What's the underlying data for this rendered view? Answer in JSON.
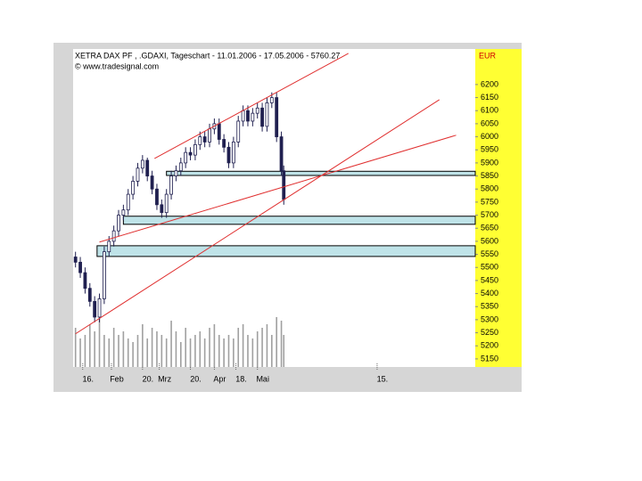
{
  "chart_data": {
    "type": "candlestick",
    "title": "XETRA DAX PF    , .GDAXI, Tageschart - 11.01.2006 - 17.05.2006 - 5760.27",
    "subtitle": "© www.tradesignal.com",
    "currency": "EUR",
    "x": [
      0,
      2,
      4,
      6,
      8,
      10,
      12,
      14,
      16,
      18,
      20,
      22,
      24,
      26,
      28,
      30,
      32,
      34,
      36,
      38,
      40,
      42,
      44,
      46,
      48,
      50,
      52,
      54,
      56,
      58,
      60,
      62,
      64,
      66,
      68,
      70,
      72,
      74,
      76,
      78,
      80,
      82,
      84,
      86,
      87
    ],
    "open": [
      5540,
      5520,
      5480,
      5420,
      5370,
      5310,
      5380,
      5560,
      5600,
      5640,
      5700,
      5720,
      5780,
      5830,
      5880,
      5910,
      5850,
      5800,
      5740,
      5710,
      5780,
      5850,
      5870,
      5900,
      5940,
      5930,
      5970,
      6000,
      5980,
      6030,
      6050,
      5990,
      5960,
      5900,
      5980,
      6060,
      6100,
      6060,
      6090,
      6110,
      6040,
      6130,
      6150,
      6000,
      5870
    ],
    "high": [
      5560,
      5540,
      5500,
      5440,
      5390,
      5400,
      5580,
      5620,
      5660,
      5720,
      5740,
      5800,
      5850,
      5900,
      5930,
      5920,
      5870,
      5820,
      5760,
      5800,
      5870,
      5890,
      5920,
      5960,
      5960,
      5990,
      6020,
      6020,
      6050,
      6070,
      6070,
      6010,
      5980,
      6000,
      6080,
      6120,
      6120,
      6110,
      6130,
      6130,
      6150,
      6170,
      6170,
      6020,
      5890
    ],
    "low": [
      5500,
      5460,
      5400,
      5350,
      5290,
      5290,
      5360,
      5540,
      5580,
      5620,
      5680,
      5700,
      5760,
      5810,
      5860,
      5830,
      5780,
      5720,
      5690,
      5690,
      5760,
      5830,
      5850,
      5880,
      5910,
      5910,
      5950,
      5960,
      5960,
      6010,
      5970,
      5940,
      5880,
      5880,
      5960,
      6040,
      6040,
      6040,
      6070,
      6020,
      6020,
      6110,
      5980,
      5850,
      5740
    ],
    "close": [
      5520,
      5480,
      5420,
      5370,
      5310,
      5380,
      5560,
      5600,
      5640,
      5700,
      5720,
      5780,
      5830,
      5880,
      5910,
      5850,
      5800,
      5740,
      5710,
      5780,
      5850,
      5870,
      5900,
      5940,
      5930,
      5970,
      6000,
      5980,
      6030,
      6050,
      5990,
      5960,
      5900,
      5980,
      6060,
      6100,
      6060,
      6090,
      6110,
      6040,
      6130,
      6150,
      6000,
      5870,
      5760
    ],
    "volume": [
      55,
      40,
      45,
      60,
      50,
      70,
      45,
      40,
      55,
      45,
      50,
      40,
      35,
      45,
      60,
      40,
      55,
      50,
      45,
      40,
      65,
      50,
      35,
      55,
      40,
      45,
      50,
      40,
      55,
      60,
      45,
      40,
      45,
      40,
      55,
      60,
      45,
      40,
      50,
      55,
      60,
      45,
      70,
      65,
      45
    ],
    "volume_lim": [
      0,
      100
    ],
    "candle_color": "#202050",
    "volume_color": "#a0a0a0",
    "trend_lines": [
      {
        "x": [
          33,
          114
        ],
        "y": [
          5917,
          6319
        ],
        "color": "#e03030"
      },
      {
        "x": [
          0,
          152
        ],
        "y": [
          5246,
          6142
        ],
        "color": "#e03030"
      },
      {
        "x": [
          10,
          159
        ],
        "y": [
          5597,
          6006
        ],
        "color": "#e03030"
      }
    ],
    "zones": [
      {
        "x": [
          38,
          167
        ],
        "y": [
          5852,
          5868
        ],
        "color": "#bfe3e8"
      },
      {
        "x": [
          20,
          167
        ],
        "y": [
          5665,
          5696
        ],
        "color": "#bfe3e8"
      },
      {
        "x": [
          9,
          167
        ],
        "y": [
          5542,
          5583
        ],
        "color": "#bfe3e8"
      }
    ],
    "xlim": [
      -1,
      167
    ],
    "xticks": [
      {
        "value": 3,
        "label": "16."
      },
      {
        "value": 15,
        "label": "Feb"
      },
      {
        "value": 28,
        "label": "20."
      },
      {
        "value": 35,
        "label": "Mrz"
      },
      {
        "value": 48,
        "label": "20."
      },
      {
        "value": 58,
        "label": "Apr"
      },
      {
        "value": 67,
        "label": "18."
      },
      {
        "value": 76,
        "label": "Mai"
      },
      {
        "value": 126,
        "label": "15."
      }
    ],
    "ylim": [
      5119,
      6336
    ],
    "yticks": [
      5150,
      5200,
      5250,
      5300,
      5350,
      5400,
      5450,
      5500,
      5550,
      5600,
      5650,
      5700,
      5750,
      5800,
      5850,
      5900,
      5950,
      6000,
      6050,
      6100,
      6150,
      6200
    ]
  }
}
